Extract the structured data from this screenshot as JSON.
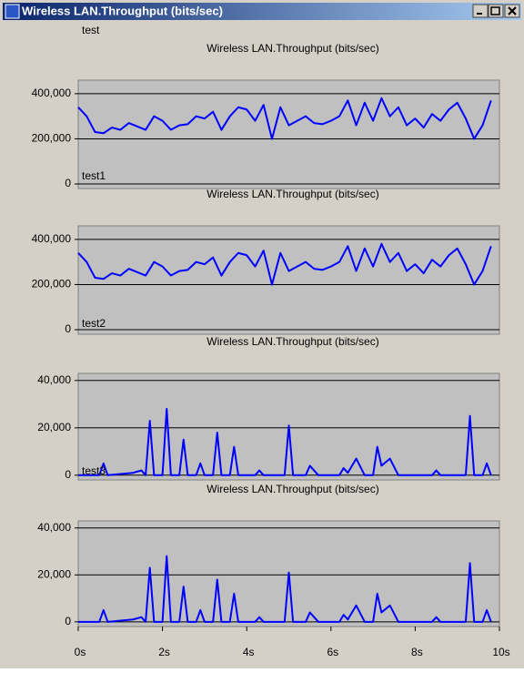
{
  "window": {
    "title": "Wireless LAN.Throughput (bits/sec)"
  },
  "chart_data": [
    {
      "type": "line",
      "label": "test",
      "title": "Wireless LAN.Throughput (bits/sec)",
      "x": [
        0,
        0.2,
        0.4,
        0.6,
        0.8,
        1,
        1.2,
        1.4,
        1.6,
        1.8,
        2,
        2.2,
        2.4,
        2.6,
        2.8,
        3,
        3.2,
        3.4,
        3.6,
        3.8,
        4,
        4.2,
        4.4,
        4.6,
        4.8,
        5,
        5.2,
        5.4,
        5.6,
        5.8,
        6,
        6.2,
        6.4,
        6.6,
        6.8,
        7,
        7.2,
        7.4,
        7.6,
        7.8,
        8,
        8.2,
        8.4,
        8.6,
        8.8,
        9,
        9.2,
        9.4,
        9.6,
        9.8
      ],
      "series": [
        {
          "color": "#0000ff",
          "values": [
            340000,
            300000,
            230000,
            225000,
            250000,
            240000,
            270000,
            255000,
            240000,
            300000,
            280000,
            240000,
            260000,
            265000,
            300000,
            290000,
            320000,
            240000,
            300000,
            340000,
            330000,
            280000,
            350000,
            200000,
            340000,
            260000,
            280000,
            300000,
            270000,
            265000,
            280000,
            300000,
            370000,
            260000,
            360000,
            280000,
            380000,
            300000,
            340000,
            260000,
            290000,
            250000,
            310000,
            280000,
            330000,
            360000,
            290000,
            200000,
            260000,
            370000
          ]
        }
      ],
      "xlim": [
        0,
        10
      ],
      "ylim": [
        -20000,
        460000
      ],
      "yticks": [
        0,
        {
          "value": 200000,
          "label": "200,000"
        },
        {
          "value": 400000,
          "label": "400,000"
        }
      ]
    },
    {
      "type": "line",
      "label": "test1",
      "title": "Wireless LAN.Throughput (bits/sec)",
      "x": [
        0,
        0.2,
        0.4,
        0.6,
        0.8,
        1,
        1.2,
        1.4,
        1.6,
        1.8,
        2,
        2.2,
        2.4,
        2.6,
        2.8,
        3,
        3.2,
        3.4,
        3.6,
        3.8,
        4,
        4.2,
        4.4,
        4.6,
        4.8,
        5,
        5.2,
        5.4,
        5.6,
        5.8,
        6,
        6.2,
        6.4,
        6.6,
        6.8,
        7,
        7.2,
        7.4,
        7.6,
        7.8,
        8,
        8.2,
        8.4,
        8.6,
        8.8,
        9,
        9.2,
        9.4,
        9.6,
        9.8
      ],
      "series": [
        {
          "color": "#0000ff",
          "values": [
            340000,
            300000,
            230000,
            225000,
            250000,
            240000,
            270000,
            255000,
            240000,
            300000,
            280000,
            240000,
            260000,
            265000,
            300000,
            290000,
            320000,
            240000,
            300000,
            340000,
            330000,
            280000,
            350000,
            200000,
            340000,
            260000,
            280000,
            300000,
            270000,
            265000,
            280000,
            300000,
            370000,
            260000,
            360000,
            280000,
            380000,
            300000,
            340000,
            260000,
            290000,
            250000,
            310000,
            280000,
            330000,
            360000,
            290000,
            200000,
            260000,
            370000
          ]
        }
      ],
      "xlim": [
        0,
        10
      ],
      "ylim": [
        -20000,
        460000
      ],
      "yticks": [
        0,
        {
          "value": 200000,
          "label": "200,000"
        },
        {
          "value": 400000,
          "label": "400,000"
        }
      ]
    },
    {
      "type": "line",
      "label": "test2",
      "title": "Wireless LAN.Throughput (bits/sec)",
      "x": [
        0,
        0.5,
        0.6,
        0.7,
        1.3,
        1.5,
        1.6,
        1.7,
        1.8,
        2,
        2.1,
        2.2,
        2.4,
        2.5,
        2.6,
        2.8,
        2.9,
        3,
        3.2,
        3.3,
        3.4,
        3.6,
        3.7,
        3.8,
        4.2,
        4.3,
        4.4,
        4.9,
        5,
        5.1,
        5.4,
        5.5,
        5.7,
        6.2,
        6.3,
        6.4,
        6.6,
        6.8,
        7,
        7.1,
        7.2,
        7.4,
        7.6,
        8.4,
        8.5,
        8.6,
        9.2,
        9.3,
        9.4,
        9.6,
        9.7,
        9.8
      ],
      "series": [
        {
          "color": "#0000ff",
          "values": [
            0,
            0,
            5000,
            0,
            1000,
            2000,
            0,
            23000,
            0,
            0,
            28000,
            0,
            0,
            15000,
            0,
            0,
            5000,
            0,
            0,
            18000,
            0,
            0,
            12000,
            0,
            0,
            2000,
            0,
            0,
            21000,
            0,
            0,
            4000,
            0,
            0,
            3000,
            1000,
            7000,
            0,
            0,
            12000,
            4000,
            7000,
            0,
            0,
            2000,
            0,
            0,
            25000,
            0,
            0,
            5000,
            0
          ]
        }
      ],
      "xlim": [
        0,
        10
      ],
      "ylim": [
        -2000,
        43000
      ],
      "yticks": [
        0,
        {
          "value": 20000,
          "label": "20,000"
        },
        {
          "value": 40000,
          "label": "40,000"
        }
      ]
    },
    {
      "type": "line",
      "label": "test3",
      "title": "Wireless LAN.Throughput (bits/sec)",
      "x": [
        0,
        0.5,
        0.6,
        0.7,
        1.3,
        1.5,
        1.6,
        1.7,
        1.8,
        2,
        2.1,
        2.2,
        2.4,
        2.5,
        2.6,
        2.8,
        2.9,
        3,
        3.2,
        3.3,
        3.4,
        3.6,
        3.7,
        3.8,
        4.2,
        4.3,
        4.4,
        4.9,
        5,
        5.1,
        5.4,
        5.5,
        5.7,
        6.2,
        6.3,
        6.4,
        6.6,
        6.8,
        7,
        7.1,
        7.2,
        7.4,
        7.6,
        8.4,
        8.5,
        8.6,
        9.2,
        9.3,
        9.4,
        9.6,
        9.7,
        9.8
      ],
      "series": [
        {
          "color": "#0000ff",
          "values": [
            0,
            0,
            5000,
            0,
            1000,
            2000,
            0,
            23000,
            0,
            0,
            28000,
            0,
            0,
            15000,
            0,
            0,
            5000,
            0,
            0,
            18000,
            0,
            0,
            12000,
            0,
            0,
            2000,
            0,
            0,
            21000,
            0,
            0,
            4000,
            0,
            0,
            3000,
            1000,
            7000,
            0,
            0,
            12000,
            4000,
            7000,
            0,
            0,
            2000,
            0,
            0,
            25000,
            0,
            0,
            5000,
            0
          ]
        }
      ],
      "xlim": [
        0,
        10
      ],
      "ylim": [
        -2000,
        43000
      ],
      "yticks": [
        0,
        {
          "value": 20000,
          "label": "20,000"
        },
        {
          "value": 40000,
          "label": "40,000"
        }
      ],
      "xticks": [
        {
          "value": 0,
          "label": "0s"
        },
        {
          "value": 2,
          "label": "2s"
        },
        {
          "value": 4,
          "label": "4s"
        },
        {
          "value": 6,
          "label": "6s"
        },
        {
          "value": 8,
          "label": "8s"
        },
        {
          "value": 10,
          "label": "10s"
        }
      ]
    }
  ]
}
